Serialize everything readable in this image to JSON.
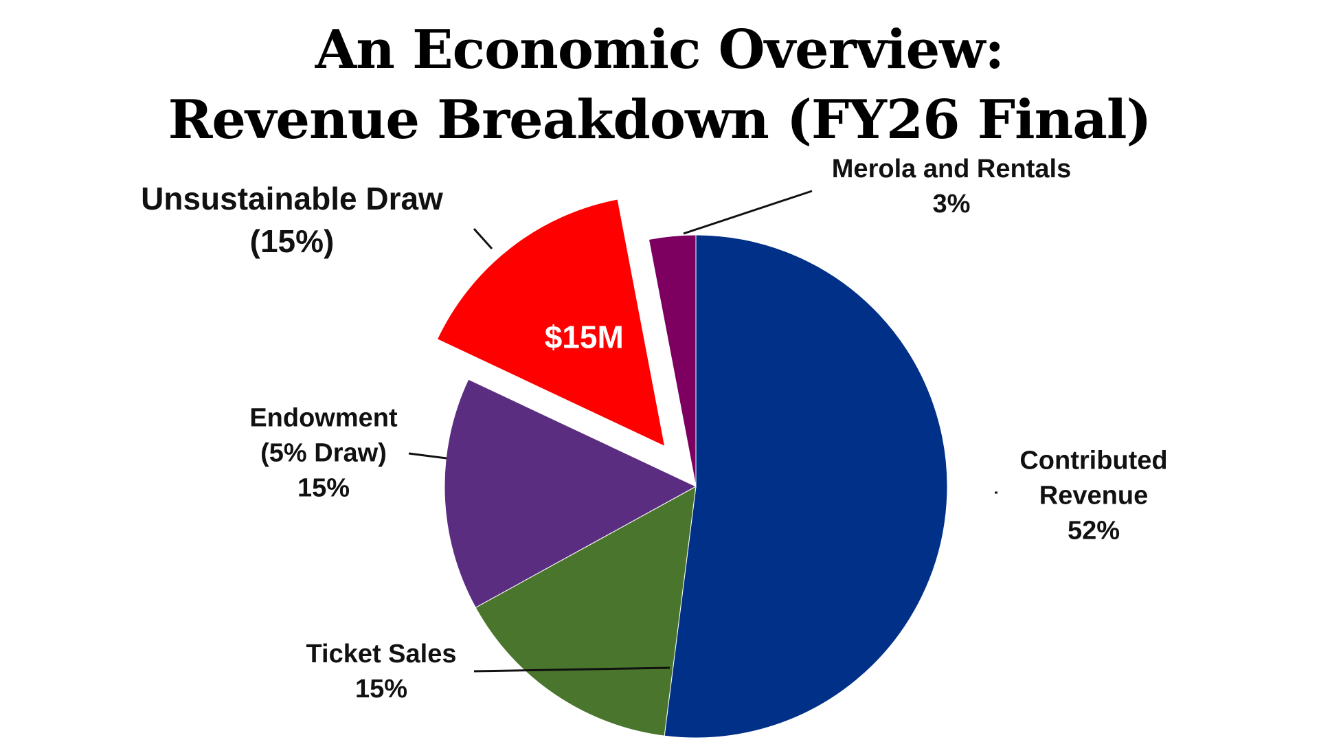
{
  "chart_data": {
    "type": "pie",
    "title_lines": [
      "An Economic Overview:",
      "Revenue Breakdown (FY26 Final)"
    ],
    "slices": [
      {
        "name": "Contributed Revenue",
        "label_lines": [
          "Contributed",
          "Revenue",
          "52%"
        ],
        "value": 52,
        "color": "#003087",
        "exploded": false
      },
      {
        "name": "Ticket Sales",
        "label_lines": [
          "Ticket Sales",
          "15%"
        ],
        "value": 15,
        "color": "#4A752C",
        "exploded": false
      },
      {
        "name": "Endowment (5% Draw)",
        "label_lines": [
          "Endowment",
          "(5% Draw)",
          "15%"
        ],
        "value": 15,
        "color": "#5A2D81",
        "exploded": false
      },
      {
        "name": "Unsustainable Draw",
        "label_lines": [
          "Unsustainable Draw",
          "(15%)"
        ],
        "value": 15,
        "color": "#FF0000",
        "exploded": true,
        "inner_label": "$15M"
      },
      {
        "name": "Merola and Rentals",
        "label_lines": [
          "Merola and Rentals",
          "3%"
        ],
        "value": 3,
        "color": "#7D0060",
        "exploded": false
      }
    ],
    "start_angle_deg": 0,
    "direction": "clockwise",
    "legend": "none"
  }
}
